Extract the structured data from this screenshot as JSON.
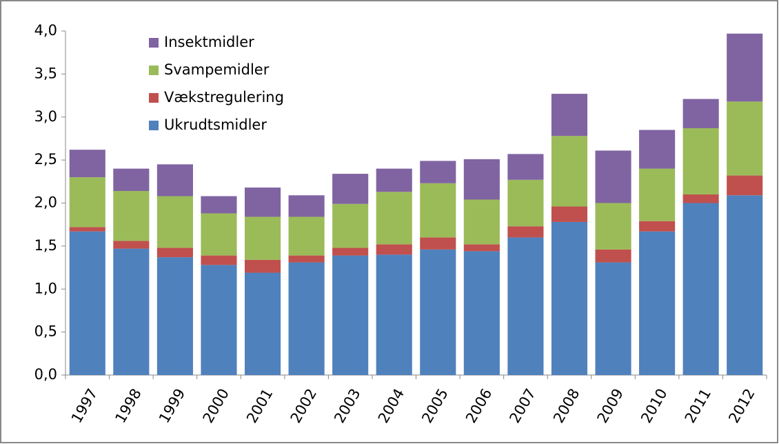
{
  "chart_data": {
    "type": "stacked_bar",
    "categories": [
      "1997",
      "1998",
      "1999",
      "2000",
      "2001",
      "2002",
      "2003",
      "2004",
      "2005",
      "2006",
      "2007",
      "2008",
      "2009",
      "2010",
      "2011",
      "2012"
    ],
    "series": [
      {
        "name": "Ukrudtsmidler",
        "color": "#4f81bd",
        "values": [
          1.67,
          1.47,
          1.37,
          1.28,
          1.19,
          1.31,
          1.39,
          1.4,
          1.46,
          1.44,
          1.6,
          1.78,
          1.31,
          1.67,
          2.0,
          2.09
        ]
      },
      {
        "name": "Vækstregulering",
        "color": "#c0504d",
        "values": [
          0.05,
          0.09,
          0.11,
          0.11,
          0.15,
          0.08,
          0.09,
          0.12,
          0.14,
          0.08,
          0.13,
          0.18,
          0.15,
          0.12,
          0.1,
          0.23
        ]
      },
      {
        "name": "Svampemidler",
        "color": "#9bbb59",
        "values": [
          0.58,
          0.58,
          0.6,
          0.49,
          0.5,
          0.45,
          0.51,
          0.61,
          0.63,
          0.52,
          0.54,
          0.82,
          0.54,
          0.61,
          0.77,
          0.86
        ]
      },
      {
        "name": "Insektmidler",
        "color": "#8064a2",
        "values": [
          0.32,
          0.26,
          0.37,
          0.2,
          0.34,
          0.25,
          0.35,
          0.27,
          0.26,
          0.47,
          0.3,
          0.49,
          0.61,
          0.45,
          0.34,
          0.79
        ]
      }
    ],
    "ylim": [
      0,
      4
    ],
    "yticks": [
      {
        "value": 0,
        "label": "0,0"
      },
      {
        "value": 0.5,
        "label": "0,5"
      },
      {
        "value": 1,
        "label": "1,0"
      },
      {
        "value": 1.5,
        "label": "1,5"
      },
      {
        "value": 2,
        "label": "2,0"
      },
      {
        "value": 2.5,
        "label": "2,5"
      },
      {
        "value": 3,
        "label": "3,0"
      },
      {
        "value": 3.5,
        "label": "3,5"
      },
      {
        "value": 4,
        "label": "4,0"
      }
    ],
    "grid": false,
    "legend": "upper left"
  }
}
